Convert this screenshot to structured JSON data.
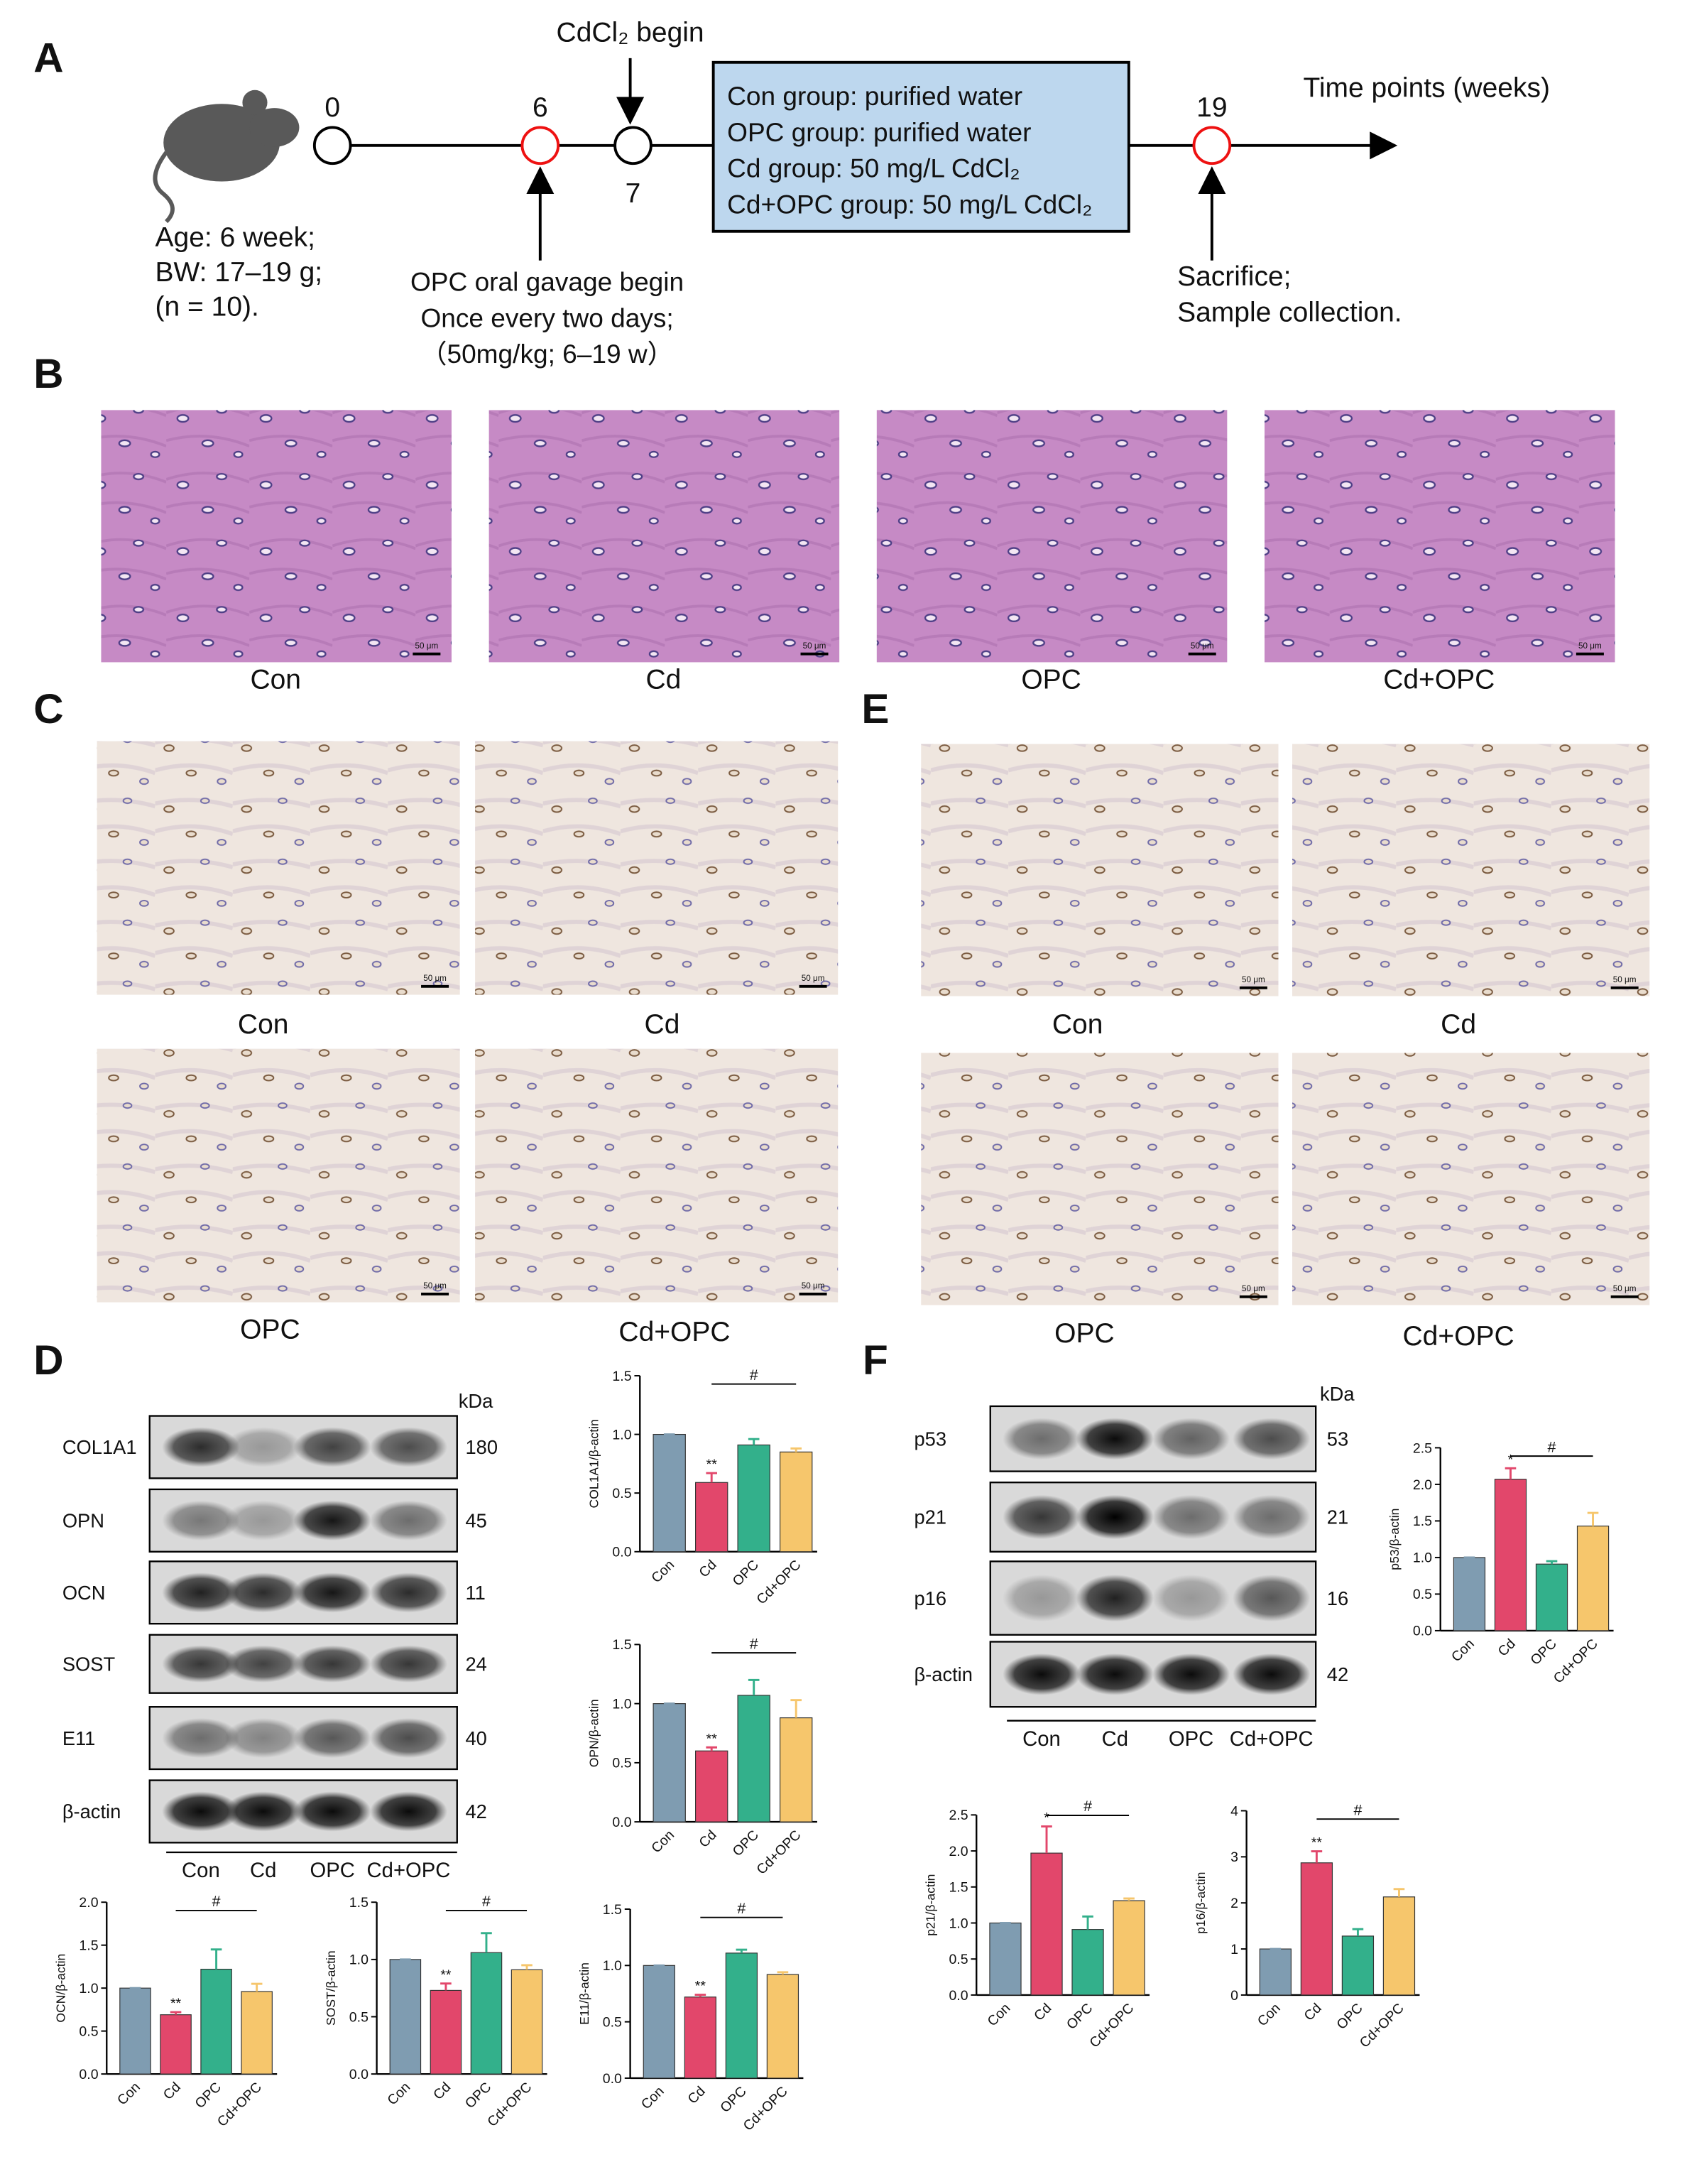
{
  "panel_labels": [
    "A",
    "B",
    "C",
    "D",
    "E",
    "F"
  ],
  "timeline": {
    "week_labels": [
      "0",
      "6",
      "7",
      "19"
    ],
    "cdcl2_begin": "CdCl₂ begin",
    "mouse_info": [
      "Age: 6 week;",
      "BW: 17–19 g;",
      "(n = 10)."
    ],
    "opc_info": [
      "OPC oral gavage begin",
      "Once every two days;",
      "（50mg/kg; 6–19 w）"
    ],
    "groups_box": [
      "Con group: purified water",
      "OPC group: purified water",
      "Cd group: 50 mg/L CdCl₂",
      "Cd+OPC group: 50 mg/L CdCl₂"
    ],
    "axis_label": "Time points (weeks)",
    "end_info": [
      "Sacrifice;",
      "Sample collection."
    ]
  },
  "histology": {
    "B_labels": [
      "Con",
      "Cd",
      "OPC",
      "Cd+OPC"
    ],
    "C_labels": [
      "Con",
      "Cd",
      "OPC",
      "Cd+OPC"
    ],
    "E_labels": [
      "Con",
      "Cd",
      "OPC",
      "Cd+OPC"
    ],
    "scale_bar": "50 μm"
  },
  "blot_D": {
    "proteins": [
      "COL1A1",
      "OPN",
      "OCN",
      "SOST",
      "E11",
      "β-actin"
    ],
    "kda": [
      "180",
      "45",
      "11",
      "24",
      "40",
      "42"
    ],
    "unit": "kDa",
    "lanes": [
      "Con",
      "Cd",
      "OPC",
      "Cd+OPC"
    ]
  },
  "blot_F": {
    "proteins": [
      "p53",
      "p21",
      "p16",
      "β-actin"
    ],
    "kda": [
      "53",
      "21",
      "16",
      "42"
    ],
    "unit": "kDa",
    "lanes": [
      "Con",
      "Cd",
      "OPC",
      "Cd+OPC"
    ]
  },
  "chart_data": [
    {
      "type": "bar",
      "ylabel": "COL1A1/β-actin",
      "categories": [
        "Con",
        "Cd",
        "OPC",
        "Cd+OPC"
      ],
      "values": [
        1.0,
        0.59,
        0.91,
        0.85
      ],
      "errors": [
        0,
        0.08,
        0.05,
        0.03
      ],
      "colors": [
        "#7f9cb1",
        "#e2476b",
        "#33b08b",
        "#f6c66c"
      ],
      "ylim": [
        0,
        1.5
      ],
      "yticks": [
        {
          "value": 0,
          "label": "0.0"
        },
        0.5,
        {
          "value": 1,
          "label": "1.0"
        },
        1.5
      ],
      "annotations": [
        "**",
        "#"
      ]
    },
    {
      "type": "bar",
      "ylabel": "OPN/β-actin",
      "categories": [
        "Con",
        "Cd",
        "OPC",
        "Cd+OPC"
      ],
      "values": [
        1.0,
        0.6,
        1.07,
        0.88
      ],
      "errors": [
        0,
        0.03,
        0.13,
        0.15
      ],
      "colors": [
        "#7f9cb1",
        "#e2476b",
        "#33b08b",
        "#f6c66c"
      ],
      "ylim": [
        0,
        1.5
      ],
      "yticks": [
        {
          "value": 0,
          "label": "0.0"
        },
        0.5,
        {
          "value": 1,
          "label": "1.0"
        },
        1.5
      ],
      "annotations": [
        "**",
        "#"
      ]
    },
    {
      "type": "bar",
      "ylabel": "OCN/β-actin",
      "categories": [
        "Con",
        "Cd",
        "OPC",
        "Cd+OPC"
      ],
      "values": [
        1.0,
        0.69,
        1.22,
        0.96
      ],
      "errors": [
        0,
        0.03,
        0.23,
        0.09
      ],
      "colors": [
        "#7f9cb1",
        "#e2476b",
        "#33b08b",
        "#f6c66c"
      ],
      "ylim": [
        0,
        2
      ],
      "yticks": [
        {
          "value": 0,
          "label": "0.0"
        },
        0.5,
        {
          "value": 1,
          "label": "1.0"
        },
        1.5,
        {
          "value": 2,
          "label": "2.0"
        }
      ],
      "annotations": [
        "**",
        "#"
      ]
    },
    {
      "type": "bar",
      "ylabel": "SOST/β-actin",
      "categories": [
        "Con",
        "Cd",
        "OPC",
        "Cd+OPC"
      ],
      "values": [
        1.0,
        0.73,
        1.06,
        0.91
      ],
      "errors": [
        0,
        0.06,
        0.17,
        0.04
      ],
      "colors": [
        "#7f9cb1",
        "#e2476b",
        "#33b08b",
        "#f6c66c"
      ],
      "ylim": [
        0,
        1.5
      ],
      "yticks": [
        {
          "value": 0,
          "label": "0.0"
        },
        0.5,
        {
          "value": 1,
          "label": "1.0"
        },
        1.5
      ],
      "annotations": [
        "**",
        "#"
      ]
    },
    {
      "type": "bar",
      "ylabel": "E11/β-actin",
      "categories": [
        "Con",
        "Cd",
        "OPC",
        "Cd+OPC"
      ],
      "values": [
        1.0,
        0.72,
        1.11,
        0.92
      ],
      "errors": [
        0,
        0.02,
        0.03,
        0.02
      ],
      "colors": [
        "#7f9cb1",
        "#e2476b",
        "#33b08b",
        "#f6c66c"
      ],
      "ylim": [
        0,
        1.5
      ],
      "yticks": [
        {
          "value": 0,
          "label": "0.0"
        },
        0.5,
        {
          "value": 1,
          "label": "1.0"
        },
        1.5
      ],
      "annotations": [
        "**",
        "#"
      ]
    },
    {
      "type": "bar",
      "ylabel": "p53/β-actin",
      "categories": [
        "Con",
        "Cd",
        "OPC",
        "Cd+OPC"
      ],
      "values": [
        1.0,
        2.07,
        0.91,
        1.43
      ],
      "errors": [
        0,
        0.15,
        0.04,
        0.18
      ],
      "colors": [
        "#7f9cb1",
        "#e2476b",
        "#33b08b",
        "#f6c66c"
      ],
      "ylim": [
        0,
        2.5
      ],
      "yticks": [
        {
          "value": 0,
          "label": "0.0"
        },
        0.5,
        {
          "value": 1,
          "label": "1.0"
        },
        1.5,
        {
          "value": 2,
          "label": "2.0"
        },
        2.5
      ],
      "annotations": [
        "*",
        "#"
      ]
    },
    {
      "type": "bar",
      "ylabel": "p21/β-actin",
      "categories": [
        "Con",
        "Cd",
        "OPC",
        "Cd+OPC"
      ],
      "values": [
        1.0,
        1.97,
        0.91,
        1.31
      ],
      "errors": [
        0,
        0.37,
        0.18,
        0.03
      ],
      "colors": [
        "#7f9cb1",
        "#e2476b",
        "#33b08b",
        "#f6c66c"
      ],
      "ylim": [
        0,
        2.5
      ],
      "yticks": [
        {
          "value": 0,
          "label": "0.0"
        },
        0.5,
        {
          "value": 1,
          "label": "1.0"
        },
        1.5,
        {
          "value": 2,
          "label": "2.0"
        },
        2.5
      ],
      "annotations": [
        "*",
        "#"
      ]
    },
    {
      "type": "bar",
      "ylabel": "p16/β-actin",
      "categories": [
        "Con",
        "Cd",
        "OPC",
        "Cd+OPC"
      ],
      "values": [
        1.0,
        2.87,
        1.28,
        2.13
      ],
      "errors": [
        0,
        0.25,
        0.15,
        0.17
      ],
      "colors": [
        "#7f9cb1",
        "#e2476b",
        "#33b08b",
        "#f6c66c"
      ],
      "ylim": [
        0,
        4
      ],
      "yticks": [
        0,
        1,
        2,
        3,
        4
      ],
      "annotations": [
        "**",
        "#"
      ]
    }
  ]
}
